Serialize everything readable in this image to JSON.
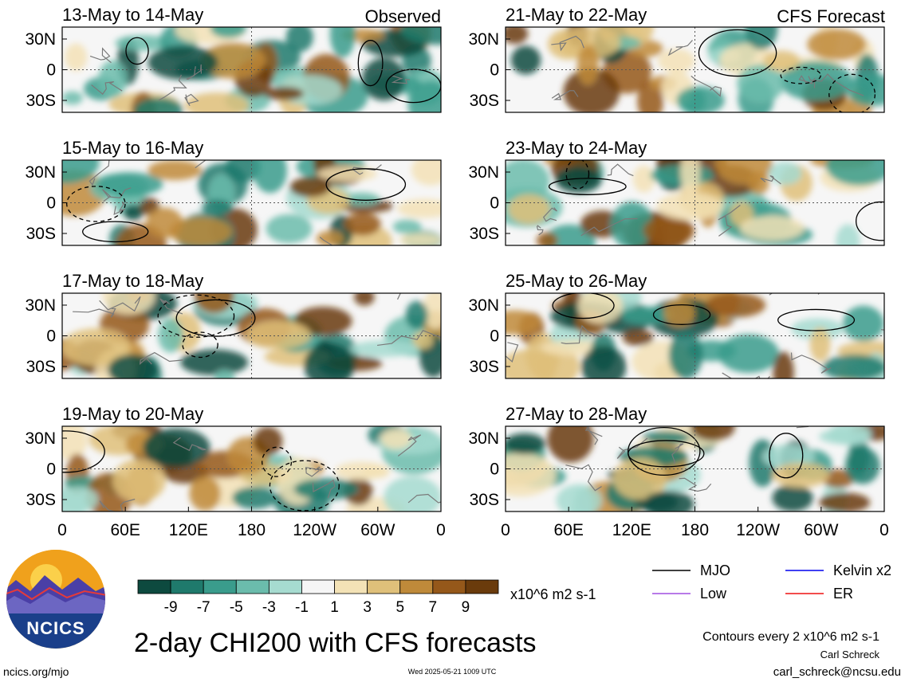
{
  "header": {
    "left_label": "Observed",
    "right_label": "CFS Forecast"
  },
  "panels_left": [
    {
      "title": "13-May to 14-May"
    },
    {
      "title": "15-May to 16-May"
    },
    {
      "title": "17-May to 18-May"
    },
    {
      "title": "19-May to 20-May"
    }
  ],
  "panels_right": [
    {
      "title": "21-May to 22-May"
    },
    {
      "title": "23-May to 24-May"
    },
    {
      "title": "25-May to 26-May"
    },
    {
      "title": "27-May to 28-May"
    }
  ],
  "axes": {
    "lat_labels": [
      "30N",
      "0",
      "30S"
    ],
    "lon_labels": [
      "0",
      "60E",
      "120E",
      "180",
      "120W",
      "60W",
      "0"
    ]
  },
  "colorbar": {
    "colors": [
      "#0d4a3f",
      "#1f7a6c",
      "#3a9c8c",
      "#6bbcac",
      "#a6dbd0",
      "#f6f6f6",
      "#f3e2b6",
      "#dfc07a",
      "#bf8a3a",
      "#95581a",
      "#6a3b0c"
    ],
    "tick_labels": [
      "-9",
      "-7",
      "-5",
      "-3",
      "-1",
      "1",
      "3",
      "5",
      "7",
      "9"
    ],
    "units": "x10^6 m2 s-1"
  },
  "legend": [
    {
      "label": "MJO",
      "color": "#000000"
    },
    {
      "label": "Kelvin x2",
      "color": "#0000ee"
    },
    {
      "label": "Low",
      "color": "#a04fe0"
    },
    {
      "label": "ER",
      "color": "#ee1111"
    }
  ],
  "footer": {
    "title": "2-day CHI200 with CFS forecasts",
    "contours": "Contours every 2 x10^6 m2 s-1",
    "author": "Carl Schreck",
    "email": "carl_schreck@ncsu.edu",
    "site": "ncics.org/mjo",
    "timestamp": "Wed 2025-05-21 1009 UTC",
    "logo_text": "NCICS"
  }
}
